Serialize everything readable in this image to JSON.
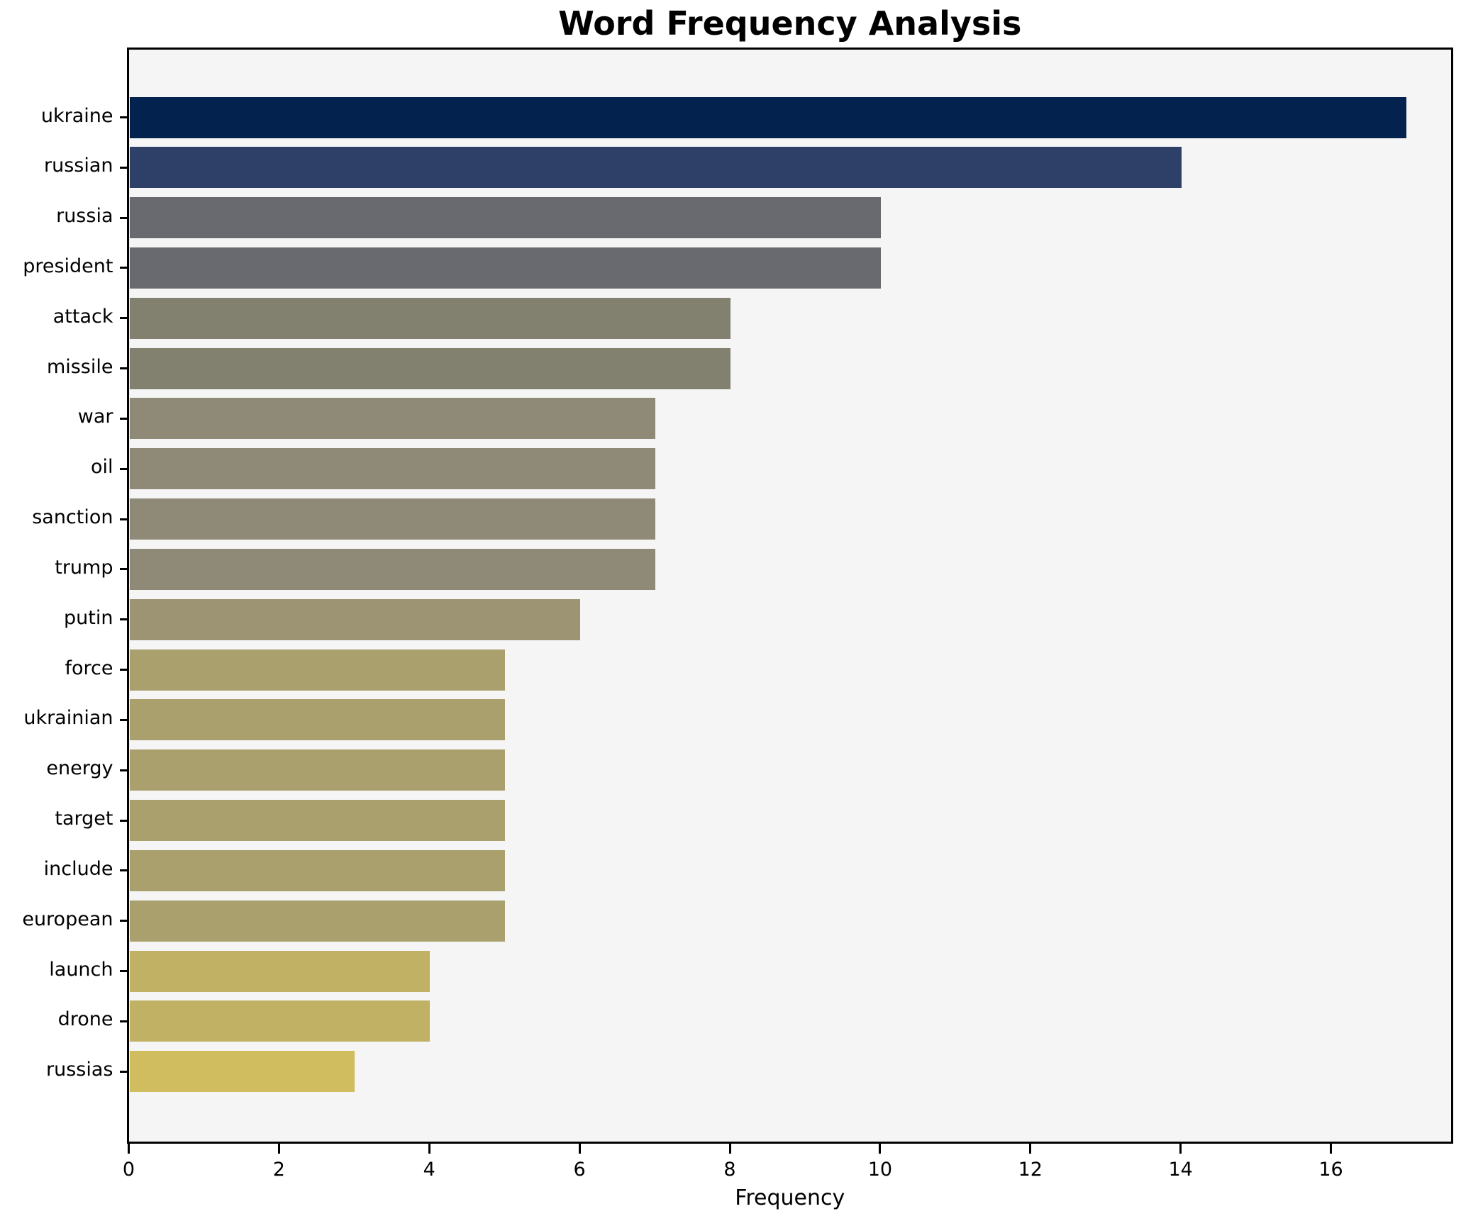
{
  "title": "Word Frequency Analysis",
  "chart_data": {
    "type": "bar",
    "orientation": "horizontal",
    "title": "Word Frequency Analysis",
    "xlabel": "Frequency",
    "ylabel": "",
    "categories": [
      "ukraine",
      "russian",
      "russia",
      "president",
      "attack",
      "missile",
      "war",
      "oil",
      "sanction",
      "trump",
      "putin",
      "force",
      "ukrainian",
      "energy",
      "target",
      "include",
      "european",
      "launch",
      "drone",
      "russias"
    ],
    "values": [
      17,
      14,
      10,
      10,
      8,
      8,
      7,
      7,
      7,
      7,
      6,
      5,
      5,
      5,
      5,
      5,
      5,
      4,
      4,
      3
    ],
    "bar_colors": [
      "#03224e",
      "#2f4068",
      "#696a70",
      "#696a70",
      "#82806f",
      "#82806f",
      "#8f8977",
      "#8f8977",
      "#8f8977",
      "#8f8977",
      "#9c9472",
      "#aaa06d",
      "#aaa06d",
      "#aaa06d",
      "#aaa06d",
      "#aaa06d",
      "#aaa06d",
      "#c0b164",
      "#c0b164",
      "#cfbd5f"
    ],
    "xlim": [
      0,
      17.6
    ],
    "xticks": [
      0,
      2,
      4,
      6,
      8,
      10,
      12,
      14,
      16
    ],
    "grid": false,
    "legend": "none",
    "plot_background": "#f5f5f6",
    "figure_background": "#ffffff",
    "spine_color": "#000000",
    "colormap": "cividis"
  }
}
